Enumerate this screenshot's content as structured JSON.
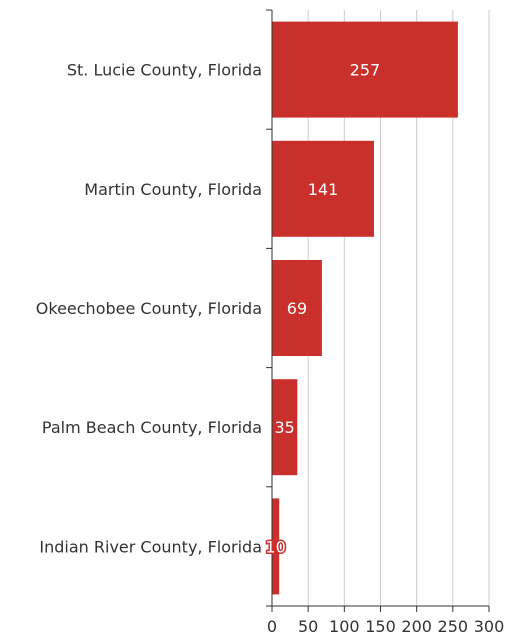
{
  "chart_data": {
    "type": "bar",
    "orientation": "horizontal",
    "categories": [
      "St. Lucie County, Florida",
      "Martin County, Florida",
      "Okeechobee County, Florida",
      "Palm Beach County, Florida",
      "Indian River County, Florida"
    ],
    "values": [
      257,
      141,
      69,
      35,
      10
    ],
    "title": "",
    "xlabel": "",
    "ylabel": "",
    "xlim": [
      0,
      300
    ],
    "xticks": [
      0,
      50,
      100,
      150,
      200,
      250,
      300
    ],
    "grid": "vertical",
    "bar_color": "#c9302c",
    "grid_color": "#cccccc",
    "axis_color": "#333333"
  }
}
